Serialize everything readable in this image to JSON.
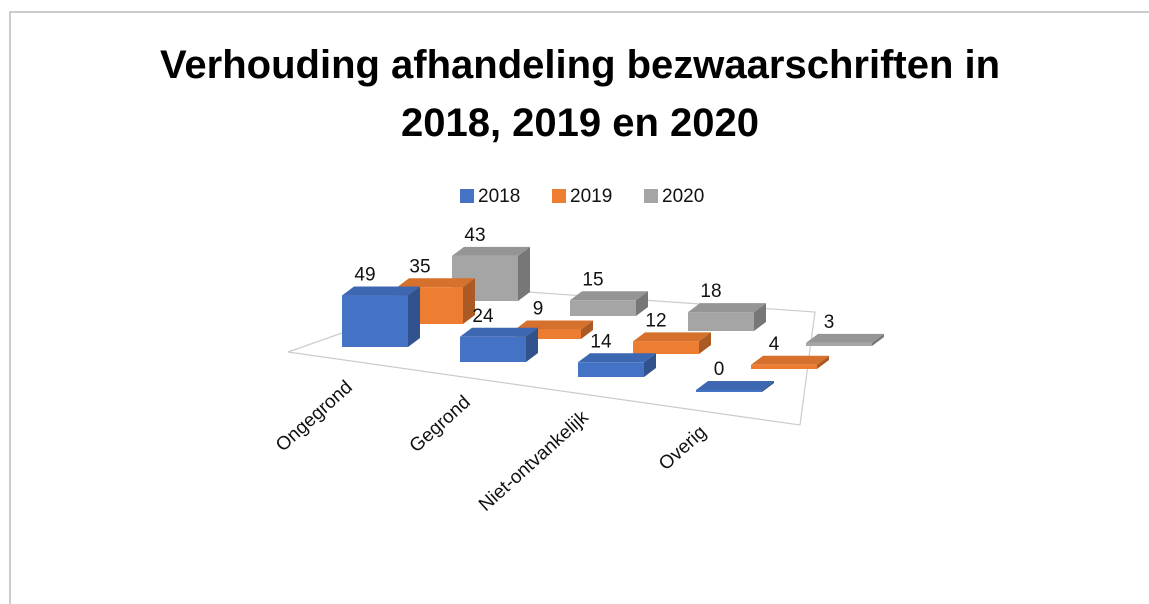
{
  "chart_data": {
    "type": "bar3d",
    "title": "Verhouding afhandeling bezwaarschriften in 2018, 2019 en 2020",
    "categories": [
      "Ongegrond",
      "Gegrond",
      "Niet-ontvankelijk",
      "Overig"
    ],
    "series": [
      {
        "name": "2018",
        "color": "#4472c4",
        "values": [
          49,
          24,
          14,
          0
        ]
      },
      {
        "name": "2019",
        "color": "#ed7d31",
        "values": [
          35,
          9,
          12,
          4
        ]
      },
      {
        "name": "2020",
        "color": "#a5a5a5",
        "values": [
          43,
          15,
          18,
          3
        ]
      }
    ],
    "legend": "top"
  }
}
